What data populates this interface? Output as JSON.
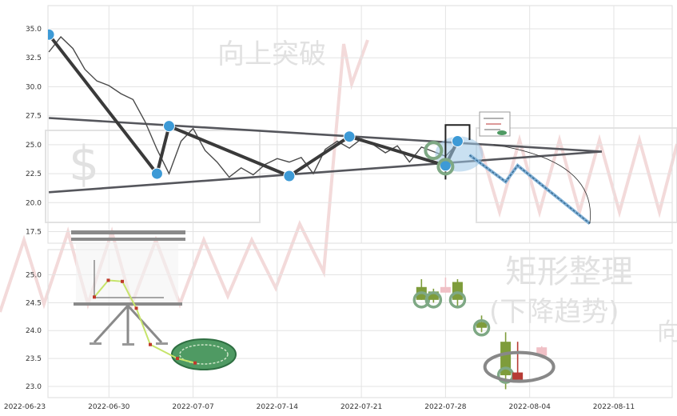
{
  "watermarks": [
    "向上突破",
    "矩形整理",
    "(下降趋势)",
    "向"
  ],
  "chart_data": [
    {
      "type": "line",
      "panel": "top",
      "ylim": [
        16.5,
        37
      ],
      "yticks": [
        "17.5",
        "20.0",
        "22.5",
        "25.0",
        "27.5",
        "30.0",
        "32.5",
        "35.0"
      ],
      "xlim": [
        "2022-06-23",
        "2022-08-14"
      ],
      "grid": true,
      "series": [
        {
          "role": "price",
          "x": [
            "2022-06-25",
            "2022-06-26",
            "2022-06-27",
            "2022-06-28",
            "2022-06-29",
            "2022-06-30",
            "2022-07-01",
            "2022-07-02",
            "2022-07-03",
            "2022-07-04",
            "2022-07-05",
            "2022-07-06",
            "2022-07-07",
            "2022-07-08",
            "2022-07-09",
            "2022-07-10",
            "2022-07-11",
            "2022-07-12",
            "2022-07-13",
            "2022-07-14",
            "2022-07-15",
            "2022-07-16",
            "2022-07-17",
            "2022-07-18",
            "2022-07-19",
            "2022-07-20",
            "2022-07-21",
            "2022-07-22",
            "2022-07-23",
            "2022-07-24",
            "2022-07-25",
            "2022-07-26",
            "2022-07-27",
            "2022-07-28",
            "2022-07-29"
          ],
          "y": [
            33.0,
            34.3,
            33.3,
            31.5,
            30.5,
            30.1,
            29.4,
            28.9,
            27.0,
            24.6,
            22.5,
            25.3,
            26.4,
            24.5,
            23.5,
            22.2,
            23.0,
            22.4,
            23.3,
            23.8,
            23.5,
            23.9,
            22.5,
            24.6,
            25.3,
            24.7,
            25.5,
            25.0,
            24.3,
            24.9,
            23.5,
            24.8,
            24.4,
            24.0,
            25.1
          ]
        },
        {
          "role": "zigzag",
          "x": [
            "2022-06-25",
            "2022-07-04",
            "2022-07-05",
            "2022-07-15",
            "2022-07-20",
            "2022-07-28",
            "2022-07-29"
          ],
          "y": [
            34.5,
            22.5,
            26.6,
            22.3,
            25.7,
            23.2,
            25.3
          ]
        },
        {
          "role": "upper-trendline",
          "x": [
            "2022-06-25",
            "2022-08-10"
          ],
          "y": [
            27.3,
            24.4
          ]
        },
        {
          "role": "lower-trendline",
          "x": [
            "2022-06-25",
            "2022-08-10"
          ],
          "y": [
            20.9,
            24.4
          ]
        },
        {
          "role": "projection",
          "x": [
            "2022-07-30",
            "2022-08-02",
            "2022-08-03",
            "2022-08-09"
          ],
          "y": [
            24.1,
            21.8,
            23.2,
            18.2
          ]
        }
      ]
    },
    {
      "type": "bar",
      "panel": "bottom",
      "ylim": [
        22.8,
        25.45
      ],
      "yticks": [
        "23.0",
        "23.5",
        "24.0",
        "24.5",
        "25.0"
      ],
      "xticks": [
        "2022-06-23",
        "2022-06-30",
        "2022-07-07",
        "2022-07-14",
        "2022-07-21",
        "2022-07-28",
        "2022-08-04",
        "2022-08-11"
      ],
      "grid": true,
      "candles": [
        {
          "x": "2022-07-26",
          "open": 24.55,
          "close": 24.78,
          "high": 24.92,
          "low": 24.55,
          "color": "#7e9c3b",
          "marked": true
        },
        {
          "x": "2022-07-27",
          "open": 24.55,
          "close": 24.7,
          "high": 24.75,
          "low": 24.5,
          "color": "#7e9c3b",
          "marked": true
        },
        {
          "x": "2022-07-28",
          "open": 24.68,
          "close": 24.78,
          "high": 24.95,
          "low": 24.68,
          "color": "#f0c0c6",
          "marked": false
        },
        {
          "x": "2022-07-29",
          "open": 24.55,
          "close": 24.87,
          "high": 24.92,
          "low": 24.4,
          "color": "#7e9c3b",
          "marked": true
        },
        {
          "x": "2022-07-31",
          "open": 24.05,
          "close": 24.15,
          "high": 24.27,
          "low": 23.97,
          "color": "#7e9c3b",
          "marked": true
        },
        {
          "x": "2022-08-02",
          "open": 23.2,
          "close": 23.8,
          "high": 23.97,
          "low": 22.95,
          "color": "#7e9c3b",
          "marked": true
        },
        {
          "x": "2022-08-03",
          "open": 23.12,
          "close": 23.25,
          "high": 23.8,
          "low": 23.12,
          "color": "#b73b35",
          "marked": false
        },
        {
          "x": "2022-08-05",
          "open": 23.55,
          "close": 23.7,
          "high": 23.72,
          "low": 23.55,
          "color": "#f0c0c6",
          "marked": false
        }
      ],
      "inset_points": [
        24.6,
        24.9,
        24.88,
        24.4,
        23.75,
        23.5,
        23.42
      ]
    }
  ]
}
